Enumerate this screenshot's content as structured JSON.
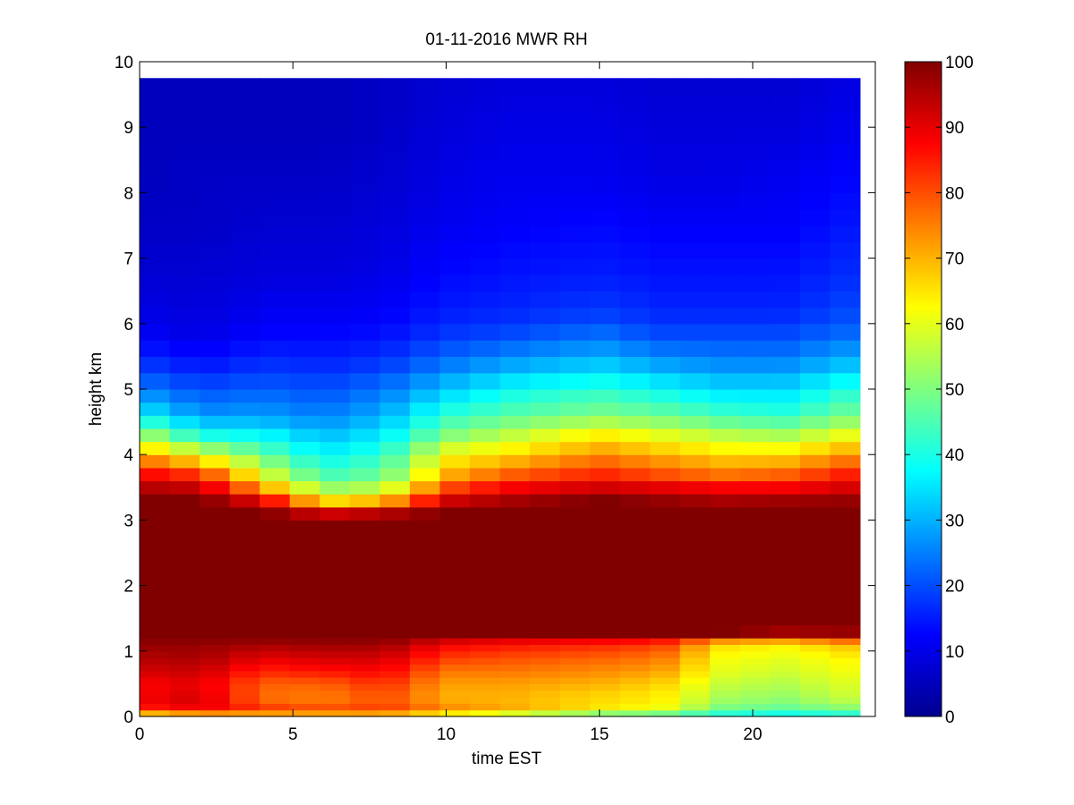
{
  "chart_data": {
    "type": "heatmap",
    "title": "01-11-2016 MWR RH",
    "xlabel": "time EST",
    "ylabel": "height km",
    "xlim": [
      0,
      24
    ],
    "ylim": [
      0,
      10
    ],
    "x_ticks": [
      0,
      5,
      10,
      15,
      20
    ],
    "x_tick_labels": [
      "0",
      "5",
      "10",
      "15",
      "20"
    ],
    "y_ticks": [
      0,
      1,
      2,
      3,
      4,
      5,
      6,
      7,
      8,
      9,
      10
    ],
    "y_tick_labels": [
      "0",
      "1",
      "2",
      "3",
      "4",
      "5",
      "6",
      "7",
      "8",
      "9",
      "10"
    ],
    "colorbar": {
      "colormap": "jet",
      "range": [
        0,
        100
      ],
      "ticks": [
        0,
        10,
        20,
        30,
        40,
        50,
        60,
        70,
        80,
        90,
        100
      ],
      "tick_labels": [
        "0",
        "10",
        "20",
        "30",
        "40",
        "50",
        "60",
        "70",
        "80",
        "90",
        "100"
      ]
    },
    "x": [
      0,
      1,
      2,
      3,
      4,
      5,
      6,
      7,
      8,
      9,
      10,
      11,
      12,
      13,
      14,
      15,
      16,
      17,
      18,
      19,
      20,
      21,
      22,
      23
    ],
    "data_extent": {
      "x_max": 23.5,
      "y_max": 9.75
    },
    "profiles": {
      "heights": [
        0.0,
        0.1,
        0.2,
        0.3,
        0.5,
        0.7,
        0.9,
        1.1,
        1.2,
        1.3,
        1.5,
        1.9,
        2.3,
        2.7,
        2.9,
        3.1,
        3.3,
        3.5,
        3.7,
        4.0,
        4.3,
        4.6,
        5.0,
        5.4,
        5.8,
        6.2,
        6.8,
        7.5,
        8.2,
        9.0,
        9.75
      ],
      "columns": [
        {
          "x": 0,
          "rh": [
            55,
            82,
            88,
            88,
            87,
            92,
            95,
            98,
            100,
            100,
            100,
            100,
            100,
            100,
            100,
            100,
            100,
            95,
            88,
            72,
            55,
            38,
            25,
            18,
            12,
            10,
            8,
            7,
            6,
            6,
            6
          ]
        },
        {
          "x": 2,
          "rh": [
            60,
            88,
            92,
            92,
            90,
            93,
            96,
            98,
            100,
            100,
            100,
            100,
            100,
            100,
            100,
            100,
            100,
            93,
            82,
            60,
            40,
            27,
            20,
            14,
            10,
            9,
            8,
            7,
            7,
            6,
            6
          ]
        },
        {
          "x": 4,
          "rh": [
            60,
            85,
            78,
            77,
            78,
            84,
            90,
            96,
            100,
            100,
            100,
            100,
            100,
            100,
            100,
            100,
            90,
            72,
            60,
            48,
            38,
            28,
            22,
            17,
            13,
            11,
            9,
            8,
            7,
            6,
            6
          ]
        },
        {
          "x": 6,
          "rh": [
            62,
            82,
            76,
            75,
            78,
            86,
            92,
            97,
            100,
            100,
            100,
            100,
            100,
            100,
            100,
            92,
            65,
            52,
            44,
            37,
            31,
            25,
            20,
            16,
            13,
            11,
            9,
            8,
            7,
            6,
            6
          ]
        },
        {
          "x": 8,
          "rh": [
            62,
            83,
            80,
            80,
            83,
            88,
            92,
            97,
            100,
            100,
            100,
            100,
            100,
            100,
            100,
            95,
            70,
            56,
            48,
            42,
            36,
            30,
            24,
            18,
            14,
            12,
            10,
            9,
            8,
            7,
            7
          ]
        },
        {
          "x": 10,
          "rh": [
            55,
            75,
            72,
            70,
            72,
            76,
            82,
            88,
            95,
            100,
            100,
            100,
            100,
            100,
            100,
            100,
            92,
            80,
            70,
            62,
            50,
            42,
            32,
            24,
            18,
            15,
            13,
            11,
            10,
            9,
            8
          ]
        },
        {
          "x": 12,
          "rh": [
            48,
            72,
            70,
            70,
            72,
            76,
            80,
            86,
            93,
            100,
            100,
            100,
            100,
            100,
            100,
            100,
            96,
            88,
            78,
            66,
            56,
            46,
            38,
            28,
            20,
            16,
            14,
            12,
            11,
            10,
            9
          ]
        },
        {
          "x": 15,
          "rh": [
            40,
            64,
            66,
            66,
            70,
            74,
            78,
            84,
            92,
            100,
            100,
            100,
            100,
            100,
            100,
            100,
            100,
            92,
            84,
            74,
            64,
            50,
            42,
            32,
            24,
            18,
            15,
            13,
            11,
            10,
            9
          ]
        },
        {
          "x": 17,
          "rh": [
            40,
            60,
            64,
            64,
            67,
            72,
            76,
            82,
            90,
            100,
            100,
            100,
            100,
            100,
            100,
            100,
            98,
            90,
            80,
            70,
            60,
            48,
            38,
            28,
            20,
            16,
            14,
            12,
            10,
            9,
            8
          ]
        },
        {
          "x": 19,
          "rh": [
            36,
            48,
            52,
            54,
            57,
            60,
            62,
            66,
            80,
            100,
            100,
            100,
            100,
            100,
            100,
            100,
            96,
            88,
            76,
            66,
            56,
            44,
            34,
            26,
            20,
            16,
            14,
            12,
            10,
            9,
            8
          ]
        },
        {
          "x": 21,
          "rh": [
            34,
            46,
            50,
            52,
            55,
            58,
            60,
            64,
            78,
            97,
            100,
            100,
            100,
            100,
            100,
            100,
            97,
            88,
            78,
            66,
            54,
            42,
            34,
            26,
            20,
            16,
            14,
            12,
            11,
            9,
            8
          ]
        },
        {
          "x": 23.5,
          "rh": [
            36,
            50,
            55,
            58,
            60,
            62,
            64,
            70,
            85,
            98,
            100,
            100,
            100,
            100,
            100,
            100,
            98,
            92,
            86,
            74,
            62,
            50,
            42,
            32,
            24,
            20,
            17,
            15,
            13,
            11,
            10
          ]
        }
      ]
    }
  }
}
